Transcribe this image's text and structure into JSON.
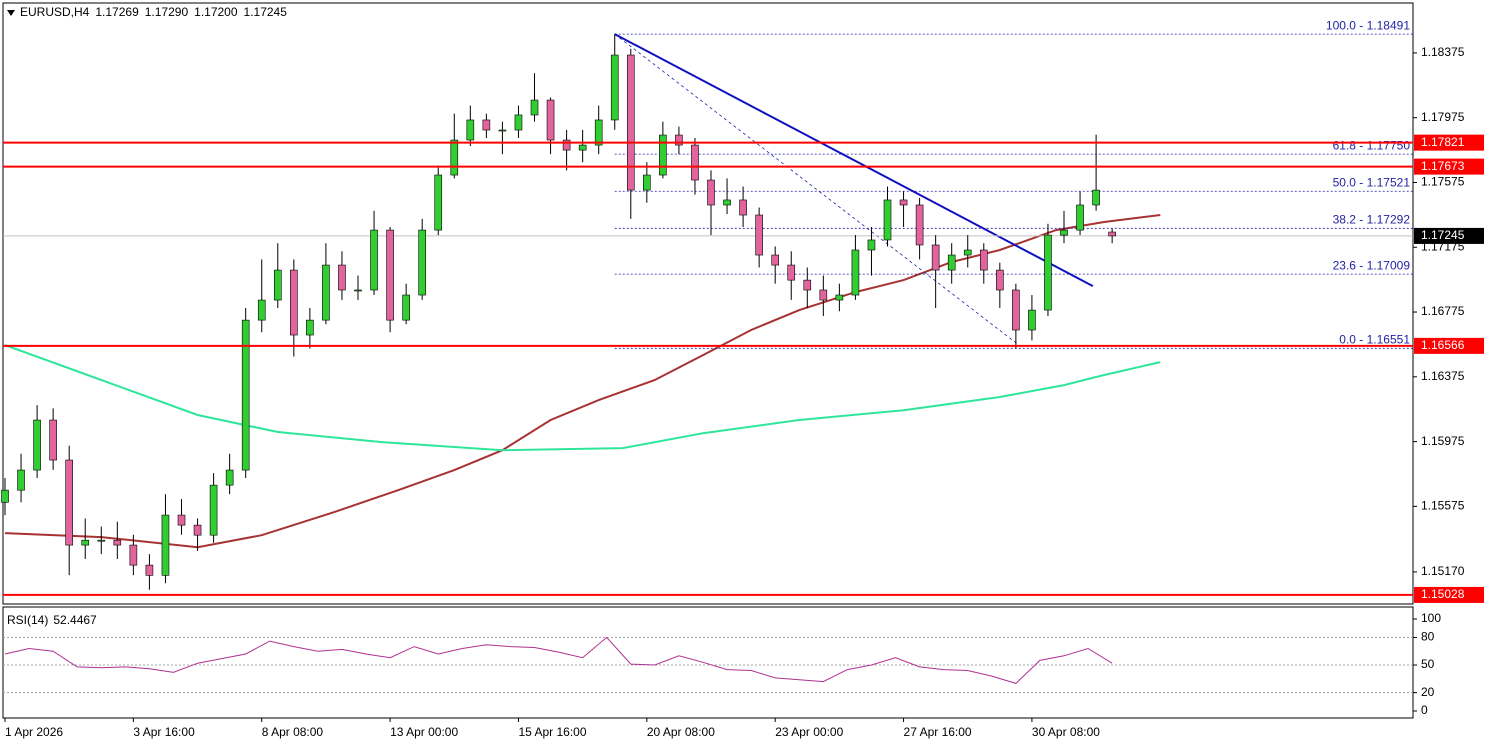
{
  "chart_data": {
    "type": "candlestick",
    "symbol": "EURUSD,H4",
    "header_ohlc": [
      "1.17269",
      "1.17290",
      "1.17200",
      "1.17245"
    ],
    "x": [
      0,
      2,
      4,
      6,
      8,
      10,
      12,
      14,
      16,
      18,
      20,
      22,
      24,
      26,
      28,
      30,
      32,
      34,
      36,
      38,
      40,
      42,
      44,
      46,
      48,
      50,
      52,
      54,
      56,
      58,
      60,
      62,
      64,
      66,
      68,
      70,
      72,
      74,
      76,
      78,
      80,
      82,
      84,
      86,
      88,
      90,
      92,
      94,
      96,
      98,
      100,
      102,
      104,
      106,
      108,
      110,
      112,
      114,
      116,
      118,
      120,
      122,
      124,
      126,
      128,
      130,
      132,
      134,
      136,
      138
    ],
    "open": [
      1.156,
      1.15675,
      1.15799,
      1.16108,
      1.15861,
      1.15336,
      1.15366,
      1.15366,
      1.15336,
      1.15212,
      1.15149,
      1.15521,
      1.15459,
      1.15397,
      1.15706,
      1.15799,
      1.16725,
      1.16849,
      1.17034,
      1.16633,
      1.16725,
      1.17065,
      1.16911,
      1.16911,
      1.17281,
      1.16725,
      1.1688,
      1.17281,
      1.17621,
      1.17837,
      1.17961,
      1.17899,
      1.17899,
      1.17992,
      1.18084,
      1.17837,
      1.17775,
      1.17806,
      1.17961,
      1.18362,
      1.17528,
      1.17621,
      1.17868,
      1.17806,
      1.1759,
      1.17436,
      1.17467,
      1.17374,
      1.17127,
      1.17065,
      1.16972,
      1.16911,
      1.16849,
      1.1688,
      1.17158,
      1.1722,
      1.17467,
      1.17436,
      1.17189,
      1.17034,
      1.17127,
      1.17158,
      1.17034,
      1.16911,
      1.16664,
      1.16787,
      1.1725,
      1.17281,
      1.17436,
      1.17269
    ],
    "high": [
      1.1575,
      1.159,
      1.162,
      1.1618,
      1.1595,
      1.155,
      1.1545,
      1.1548,
      1.154,
      1.1528,
      1.1565,
      1.1562,
      1.155,
      1.1578,
      1.159,
      1.168,
      1.171,
      1.172,
      1.171,
      1.168,
      1.172,
      1.1715,
      1.17,
      1.174,
      1.173,
      1.1695,
      1.1735,
      1.1768,
      1.18,
      1.1805,
      1.18,
      1.1795,
      1.1805,
      1.1825,
      1.181,
      1.179,
      1.179,
      1.1805,
      1.18491,
      1.184,
      1.177,
      1.1795,
      1.1792,
      1.1785,
      1.1765,
      1.176,
      1.1755,
      1.1742,
      1.1718,
      1.1715,
      1.1705,
      1.17,
      1.1695,
      1.1725,
      1.173,
      1.1755,
      1.1752,
      1.1748,
      1.1725,
      1.172,
      1.1725,
      1.172,
      1.1708,
      1.1695,
      1.1688,
      1.1732,
      1.174,
      1.1752,
      1.1787,
      1.1729
    ],
    "low": [
      1.1552,
      1.156,
      1.1575,
      1.158,
      1.1515,
      1.1525,
      1.1528,
      1.1525,
      1.1515,
      1.1506,
      1.151,
      1.154,
      1.153,
      1.1535,
      1.1565,
      1.1575,
      1.1665,
      1.168,
      1.165,
      1.1655,
      1.167,
      1.1685,
      1.1685,
      1.1688,
      1.1665,
      1.167,
      1.1685,
      1.1725,
      1.176,
      1.178,
      1.1785,
      1.1775,
      1.1785,
      1.1795,
      1.1775,
      1.1765,
      1.177,
      1.1775,
      1.179,
      1.1735,
      1.1745,
      1.176,
      1.1775,
      1.175,
      1.1725,
      1.1738,
      1.173,
      1.1705,
      1.1695,
      1.1685,
      1.168,
      1.1675,
      1.1678,
      1.1685,
      1.17,
      1.1718,
      1.173,
      1.171,
      1.168,
      1.1695,
      1.1705,
      1.1695,
      1.168,
      1.16551,
      1.166,
      1.1675,
      1.172,
      1.1725,
      1.174,
      1.172
    ],
    "close": [
      1.15675,
      1.15799,
      1.16108,
      1.15861,
      1.15336,
      1.15366,
      1.15366,
      1.15336,
      1.15212,
      1.15149,
      1.15521,
      1.15459,
      1.15397,
      1.15706,
      1.15799,
      1.16725,
      1.16849,
      1.17034,
      1.16633,
      1.16725,
      1.17065,
      1.16911,
      1.16911,
      1.17281,
      1.16725,
      1.1688,
      1.17281,
      1.17621,
      1.17837,
      1.17961,
      1.17899,
      1.17899,
      1.17992,
      1.18084,
      1.17837,
      1.17775,
      1.17806,
      1.17961,
      1.18362,
      1.17528,
      1.17621,
      1.17868,
      1.17806,
      1.1759,
      1.17436,
      1.17467,
      1.17374,
      1.17127,
      1.17065,
      1.16972,
      1.16911,
      1.16849,
      1.1688,
      1.17158,
      1.1722,
      1.17467,
      1.17436,
      1.17189,
      1.17034,
      1.17127,
      1.17158,
      1.17034,
      1.16911,
      1.16664,
      1.16787,
      1.1725,
      1.17281,
      1.17436,
      1.17528,
      1.17245
    ],
    "up_color": "#32cd32",
    "down_color": "#e2649c",
    "xlim": [
      -0.25,
      175.5
    ],
    "xticks": [
      {
        "value": 0,
        "label": "1 Apr 2026"
      },
      {
        "value": 16,
        "label": "3 Apr 16:00"
      },
      {
        "value": 32,
        "label": "8 Apr 08:00"
      },
      {
        "value": 48,
        "label": "13 Apr 00:00"
      },
      {
        "value": 64,
        "label": "15 Apr 16:00"
      },
      {
        "value": 80,
        "label": "20 Apr 08:00"
      },
      {
        "value": 96,
        "label": "23 Apr 00:00"
      },
      {
        "value": 112,
        "label": "27 Apr 16:00"
      },
      {
        "value": 128,
        "label": "30 Apr 08:00"
      }
    ],
    "ylim": [
      1.14972,
      1.18671
    ],
    "yticks": [
      1.18375,
      1.17975,
      1.17575,
      1.17175,
      1.16775,
      1.16375,
      1.15975,
      1.15575,
      {
        "value": 1.1517,
        "label": "1.15170"
      }
    ],
    "moving_averages": [
      {
        "color": "#a83232",
        "x": [
          0,
          12,
          24,
          32,
          41,
          49,
          56,
          62,
          68,
          74,
          81,
          87,
          93,
          99,
          106,
          112,
          118,
          124,
          131,
          137,
          144
        ],
        "values": [
          1.1541,
          1.15385,
          1.15323,
          1.15397,
          1.15539,
          1.15675,
          1.15799,
          1.15922,
          1.16108,
          1.16231,
          1.16355,
          1.16509,
          1.16664,
          1.16787,
          1.16898,
          1.16972,
          1.17084,
          1.17158,
          1.17281,
          1.17331,
          1.17374
        ]
      },
      {
        "color": "#2de69a",
        "x": [
          0,
          12,
          24,
          34,
          47,
          62,
          77,
          87,
          99,
          112,
          124,
          132,
          137,
          144
        ],
        "values": [
          1.16571,
          1.16355,
          1.16139,
          1.16034,
          1.15972,
          1.15922,
          1.15935,
          1.16027,
          1.16108,
          1.16169,
          1.1625,
          1.16324,
          1.16386,
          1.16466
        ]
      }
    ],
    "levels": [
      {
        "price": 1.17821,
        "color": "#ff0000"
      },
      {
        "price": 1.17673,
        "color": "#ff0000"
      },
      {
        "price": 1.16566,
        "color": "#ff0000"
      },
      {
        "price": 1.15028,
        "color": "#ff0000"
      }
    ],
    "trendline": {
      "color": "#1010c0",
      "x": [
        76,
        135.6
      ],
      "values": [
        1.18491,
        1.16935
      ]
    },
    "fib": {
      "color": "#1f1fa8",
      "x": [
        76,
        126.9
      ],
      "values": [
        1.18491,
        1.16551
      ],
      "levels": [
        {
          "label": "100.0 - 1.18491",
          "price": 1.18491
        },
        {
          "label": "61.8 - 1.17750",
          "price": 1.1775
        },
        {
          "label": "50.0 - 1.17521",
          "price": 1.17521
        },
        {
          "label": "38.2 - 1.17292",
          "price": 1.17292
        },
        {
          "label": "23.6 - 1.17009",
          "price": 1.17009
        },
        {
          "label": "0.0 - 1.16551",
          "price": 1.16551
        }
      ]
    },
    "rsi": {
      "name": "RSI(14)",
      "current": 52.4467,
      "color": "#b03090",
      "x": [
        0,
        3,
        6,
        9,
        12,
        15,
        18,
        21,
        24,
        27,
        30,
        33,
        36,
        39,
        42,
        45,
        48,
        51,
        54,
        57,
        60,
        63,
        66,
        69,
        72,
        75,
        78,
        81,
        84,
        87,
        90,
        93,
        96,
        99,
        102,
        105,
        108,
        111,
        114,
        117,
        120,
        123,
        126,
        129,
        132,
        135,
        138
      ],
      "values": [
        62,
        68,
        65,
        48,
        47,
        48,
        46,
        42,
        52,
        57,
        62,
        76,
        70,
        65,
        67,
        62,
        58,
        70,
        62,
        68,
        72,
        70,
        69,
        64,
        58,
        80,
        51,
        50,
        60,
        53,
        45,
        44,
        36,
        34,
        32,
        45,
        50,
        58,
        48,
        45,
        44,
        38,
        30,
        55,
        60,
        68,
        52
      ],
      "ylim": [
        -7.6,
        112
      ],
      "yticks": [
        100,
        80,
        50,
        20,
        0
      ],
      "levels": [
        80,
        50,
        20
      ]
    }
  }
}
